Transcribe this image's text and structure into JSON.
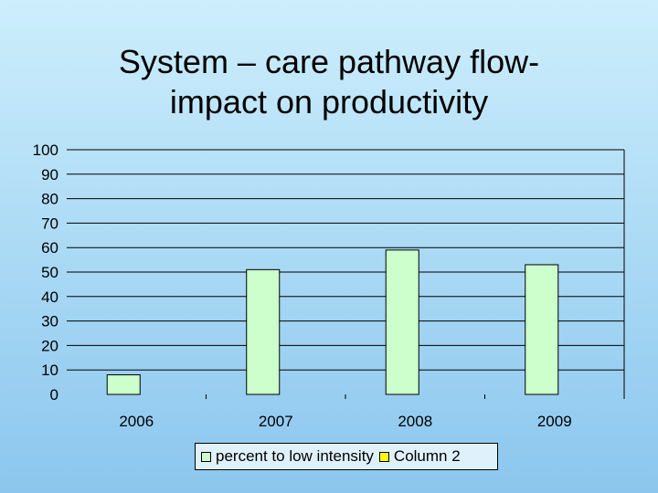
{
  "title": {
    "line1": "System – care pathway flow-",
    "line2": "impact on productivity"
  },
  "chart_data": {
    "type": "bar",
    "categories": [
      "2006",
      "2007",
      "2008",
      "2009"
    ],
    "series": [
      {
        "name": "percent to low intensity",
        "values": [
          8,
          51,
          59,
          53
        ],
        "color": "#ccffcc"
      },
      {
        "name": "Column 2",
        "values": [
          0,
          0,
          0,
          0
        ],
        "color": "#ffff00"
      }
    ],
    "ylim": [
      0,
      100
    ],
    "yticks": [
      "0",
      "10",
      "20",
      "30",
      "40",
      "50",
      "60",
      "70",
      "80",
      "90",
      "100"
    ],
    "grid": true,
    "legend_position": "bottom"
  }
}
